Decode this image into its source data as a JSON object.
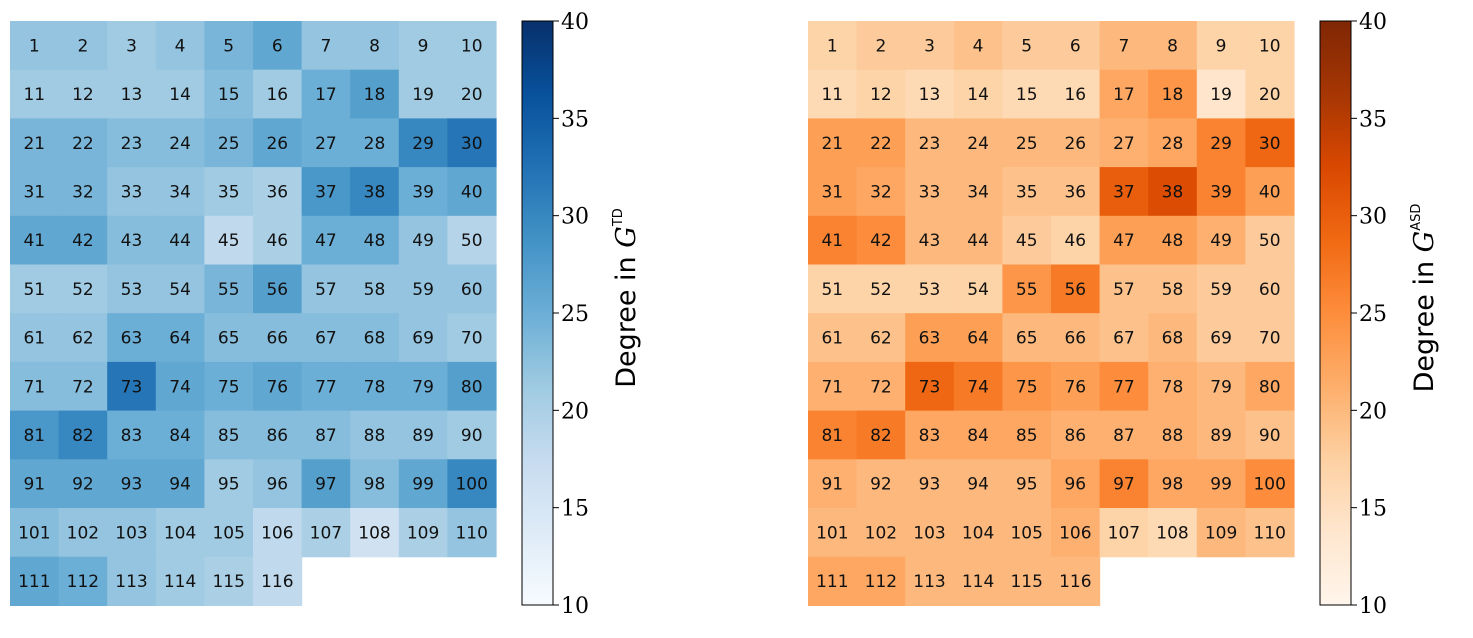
{
  "chart_data": [
    {
      "type": "heatmap",
      "colormap": "Blues",
      "columns": 10,
      "labels": [
        "1",
        "2",
        "3",
        "4",
        "5",
        "6",
        "7",
        "8",
        "9",
        "10",
        "11",
        "12",
        "13",
        "14",
        "15",
        "16",
        "17",
        "18",
        "19",
        "20",
        "21",
        "22",
        "23",
        "24",
        "25",
        "26",
        "27",
        "28",
        "29",
        "30",
        "31",
        "32",
        "33",
        "34",
        "35",
        "36",
        "37",
        "38",
        "39",
        "40",
        "41",
        "42",
        "43",
        "44",
        "45",
        "46",
        "47",
        "48",
        "49",
        "50",
        "51",
        "52",
        "53",
        "54",
        "55",
        "56",
        "57",
        "58",
        "59",
        "60",
        "61",
        "62",
        "63",
        "64",
        "65",
        "66",
        "67",
        "68",
        "69",
        "70",
        "71",
        "72",
        "73",
        "74",
        "75",
        "76",
        "77",
        "78",
        "79",
        "80",
        "81",
        "82",
        "83",
        "84",
        "85",
        "86",
        "87",
        "88",
        "89",
        "90",
        "91",
        "92",
        "93",
        "94",
        "95",
        "96",
        "97",
        "98",
        "99",
        "100",
        "101",
        "102",
        "103",
        "104",
        "105",
        "106",
        "107",
        "108",
        "109",
        "110",
        "111",
        "112",
        "113",
        "114",
        "115",
        "116"
      ],
      "values": [
        22,
        22,
        21,
        22,
        24,
        26,
        22,
        22,
        21,
        21,
        21,
        21,
        21,
        21,
        23,
        21,
        25,
        27,
        21,
        21,
        24,
        24,
        23,
        23,
        24,
        26,
        25,
        25,
        30,
        32,
        24,
        24,
        22,
        22,
        21,
        20,
        28,
        30,
        25,
        26,
        26,
        26,
        23,
        23,
        18,
        20,
        25,
        25,
        22,
        19,
        21,
        21,
        22,
        22,
        24,
        27,
        22,
        22,
        22,
        22,
        22,
        22,
        25,
        25,
        23,
        23,
        23,
        23,
        22,
        21,
        23,
        23,
        32,
        26,
        25,
        26,
        25,
        25,
        25,
        27,
        28,
        30,
        25,
        25,
        23,
        23,
        23,
        22,
        22,
        21,
        26,
        26,
        26,
        26,
        21,
        22,
        27,
        23,
        26,
        30,
        23,
        22,
        22,
        21,
        21,
        18,
        20,
        16,
        20,
        22,
        26,
        25,
        22,
        21,
        20,
        18
      ],
      "colorbar": {
        "label": "Degree in",
        "symbol": "G",
        "superscript": "TD",
        "ticks": [
          10,
          15,
          20,
          25,
          30,
          35,
          40
        ],
        "range": [
          10,
          40
        ]
      }
    },
    {
      "type": "heatmap",
      "colormap": "Oranges",
      "columns": 10,
      "labels": [
        "1",
        "2",
        "3",
        "4",
        "5",
        "6",
        "7",
        "8",
        "9",
        "10",
        "11",
        "12",
        "13",
        "14",
        "15",
        "16",
        "17",
        "18",
        "19",
        "20",
        "21",
        "22",
        "23",
        "24",
        "25",
        "26",
        "27",
        "28",
        "29",
        "30",
        "31",
        "32",
        "33",
        "34",
        "35",
        "36",
        "37",
        "38",
        "39",
        "40",
        "41",
        "42",
        "43",
        "44",
        "45",
        "46",
        "47",
        "48",
        "49",
        "50",
        "51",
        "52",
        "53",
        "54",
        "55",
        "56",
        "57",
        "58",
        "59",
        "60",
        "61",
        "62",
        "63",
        "64",
        "65",
        "66",
        "67",
        "68",
        "69",
        "70",
        "71",
        "72",
        "73",
        "74",
        "75",
        "76",
        "77",
        "78",
        "79",
        "80",
        "81",
        "82",
        "83",
        "84",
        "85",
        "86",
        "87",
        "88",
        "89",
        "90",
        "91",
        "92",
        "93",
        "94",
        "95",
        "96",
        "97",
        "98",
        "99",
        "100",
        "101",
        "102",
        "103",
        "104",
        "105",
        "106",
        "107",
        "108",
        "109",
        "110",
        "111",
        "112",
        "113",
        "114",
        "115",
        "116"
      ],
      "values": [
        17,
        18,
        18,
        19,
        18,
        18,
        20,
        20,
        17,
        17,
        16,
        17,
        16,
        17,
        16,
        16,
        22,
        24,
        14,
        17,
        23,
        23,
        20,
        20,
        20,
        20,
        21,
        22,
        26,
        29,
        23,
        22,
        20,
        20,
        19,
        19,
        30,
        32,
        26,
        23,
        26,
        25,
        20,
        20,
        18,
        17,
        23,
        23,
        21,
        18,
        17,
        17,
        17,
        17,
        24,
        27,
        19,
        19,
        18,
        18,
        19,
        19,
        23,
        23,
        20,
        20,
        19,
        20,
        18,
        18,
        21,
        21,
        29,
        27,
        24,
        23,
        25,
        21,
        20,
        22,
        26,
        27,
        22,
        22,
        22,
        21,
        21,
        21,
        20,
        19,
        21,
        20,
        20,
        20,
        20,
        22,
        26,
        22,
        22,
        25,
        20,
        20,
        20,
        20,
        20,
        21,
        17,
        16,
        20,
        19,
        22,
        22,
        20,
        20,
        20,
        20
      ],
      "colorbar": {
        "label": "Degree in",
        "symbol": "G",
        "superscript": "ASD",
        "ticks": [
          10,
          15,
          20,
          25,
          30,
          35,
          40
        ],
        "range": [
          10,
          40
        ]
      }
    }
  ]
}
